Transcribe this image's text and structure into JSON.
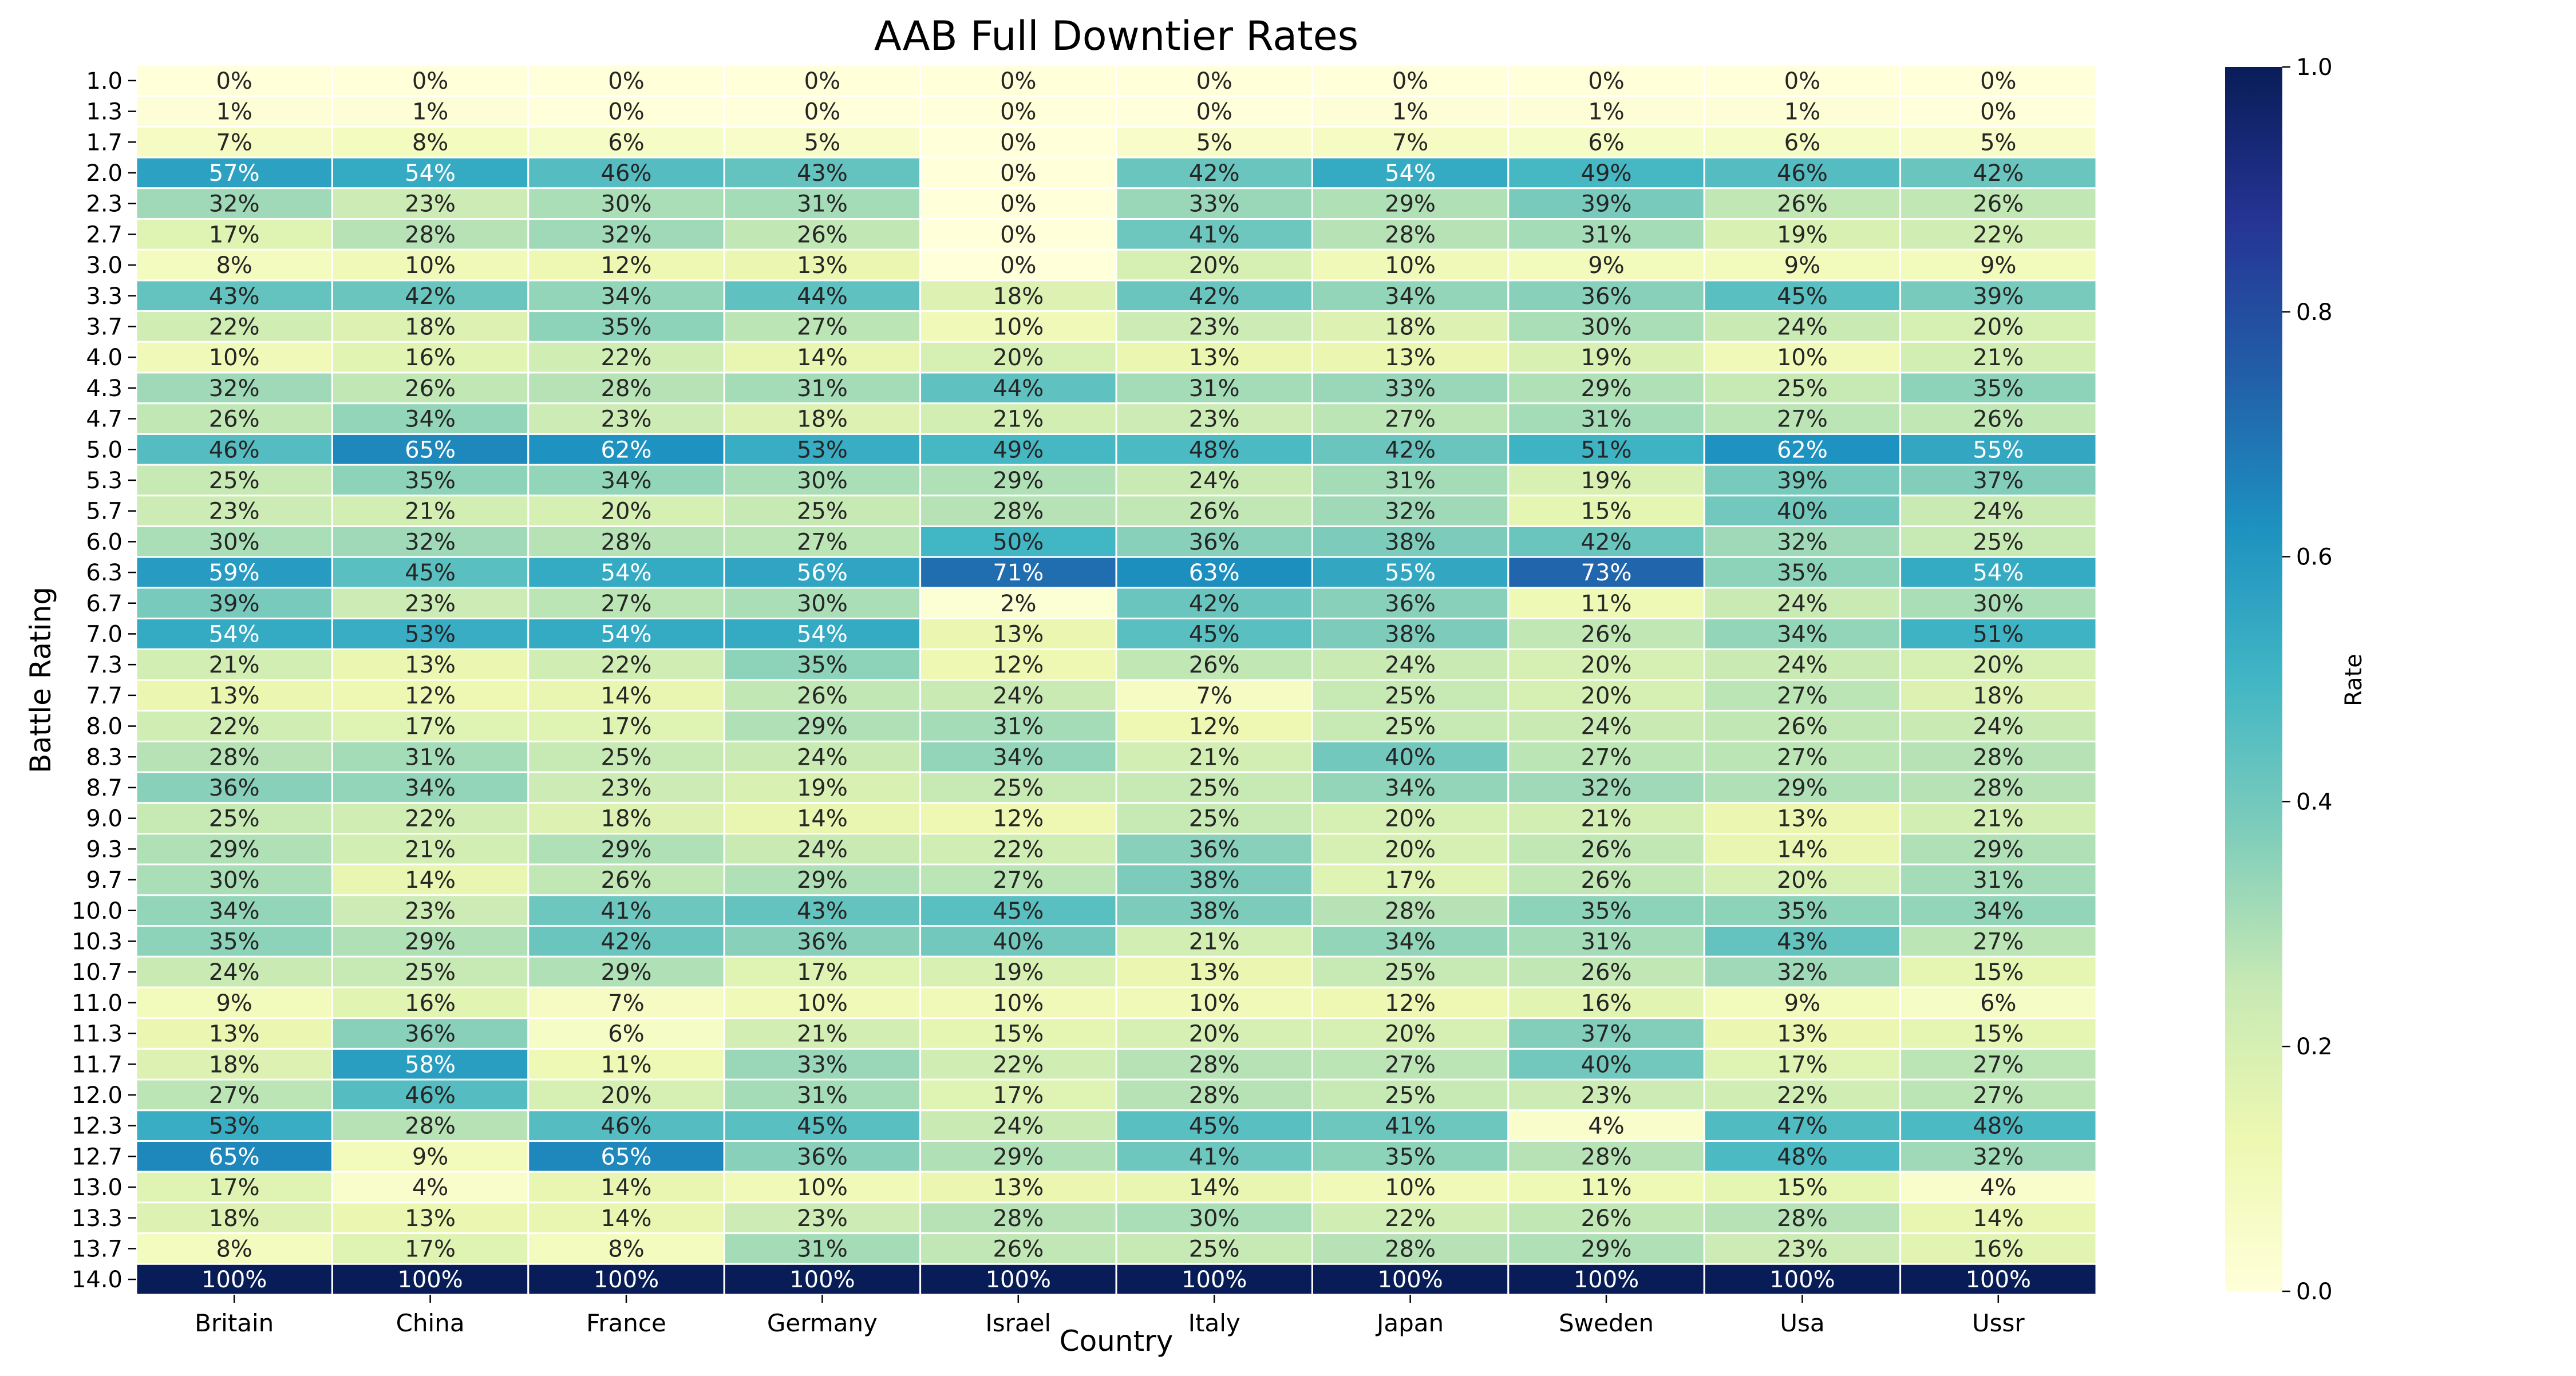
{
  "chart_data": {
    "type": "heatmap",
    "title": "AAB Full Downtier Rates",
    "xlabel": "Country",
    "ylabel": "Battle Rating",
    "x": [
      "Britain",
      "China",
      "France",
      "Germany",
      "Israel",
      "Italy",
      "Japan",
      "Sweden",
      "Usa",
      "Ussr"
    ],
    "y": [
      "1.0",
      "1.3",
      "1.7",
      "2.0",
      "2.3",
      "2.7",
      "3.0",
      "3.3",
      "3.7",
      "4.0",
      "4.3",
      "4.7",
      "5.0",
      "5.3",
      "5.7",
      "6.0",
      "6.3",
      "6.7",
      "7.0",
      "7.3",
      "7.7",
      "8.0",
      "8.3",
      "8.7",
      "9.0",
      "9.3",
      "9.7",
      "10.0",
      "10.3",
      "10.7",
      "11.0",
      "11.3",
      "11.7",
      "12.0",
      "12.3",
      "12.7",
      "13.0",
      "13.3",
      "13.7",
      "14.0"
    ],
    "values": [
      [
        0,
        0,
        0,
        0,
        0,
        0,
        0,
        0,
        0,
        0
      ],
      [
        1,
        1,
        0,
        0,
        0,
        0,
        1,
        1,
        1,
        0
      ],
      [
        7,
        8,
        6,
        5,
        0,
        5,
        7,
        6,
        6,
        5
      ],
      [
        57,
        54,
        46,
        43,
        0,
        42,
        54,
        49,
        46,
        42
      ],
      [
        32,
        23,
        30,
        31,
        0,
        33,
        29,
        39,
        26,
        26
      ],
      [
        17,
        28,
        32,
        26,
        0,
        41,
        28,
        31,
        19,
        22
      ],
      [
        8,
        10,
        12,
        13,
        0,
        20,
        10,
        9,
        9,
        9
      ],
      [
        43,
        42,
        34,
        44,
        18,
        42,
        34,
        36,
        45,
        39
      ],
      [
        22,
        18,
        35,
        27,
        10,
        23,
        18,
        30,
        24,
        20
      ],
      [
        10,
        16,
        22,
        14,
        20,
        13,
        13,
        19,
        10,
        21
      ],
      [
        32,
        26,
        28,
        31,
        44,
        31,
        33,
        29,
        25,
        35
      ],
      [
        26,
        34,
        23,
        18,
        21,
        23,
        27,
        31,
        27,
        26
      ],
      [
        46,
        65,
        62,
        53,
        49,
        48,
        42,
        51,
        62,
        55
      ],
      [
        25,
        35,
        34,
        30,
        29,
        24,
        31,
        19,
        39,
        37
      ],
      [
        23,
        21,
        20,
        25,
        28,
        26,
        32,
        15,
        40,
        24
      ],
      [
        30,
        32,
        28,
        27,
        50,
        36,
        38,
        42,
        32,
        25
      ],
      [
        59,
        45,
        54,
        56,
        71,
        63,
        55,
        73,
        35,
        54
      ],
      [
        39,
        23,
        27,
        30,
        2,
        42,
        36,
        11,
        24,
        30
      ],
      [
        54,
        53,
        54,
        54,
        13,
        45,
        38,
        26,
        34,
        51
      ],
      [
        21,
        13,
        22,
        35,
        12,
        26,
        24,
        20,
        24,
        20
      ],
      [
        13,
        12,
        14,
        26,
        24,
        7,
        25,
        20,
        27,
        18
      ],
      [
        22,
        17,
        17,
        29,
        31,
        12,
        25,
        24,
        26,
        24
      ],
      [
        28,
        31,
        25,
        24,
        34,
        21,
        40,
        27,
        27,
        28
      ],
      [
        36,
        34,
        23,
        19,
        25,
        25,
        34,
        32,
        29,
        28
      ],
      [
        25,
        22,
        18,
        14,
        12,
        25,
        20,
        21,
        13,
        21
      ],
      [
        29,
        21,
        29,
        24,
        22,
        36,
        20,
        26,
        14,
        29
      ],
      [
        30,
        14,
        26,
        29,
        27,
        38,
        17,
        26,
        20,
        31
      ],
      [
        34,
        23,
        41,
        43,
        45,
        38,
        28,
        35,
        35,
        34
      ],
      [
        35,
        29,
        42,
        36,
        40,
        21,
        34,
        31,
        43,
        27
      ],
      [
        24,
        25,
        29,
        17,
        19,
        13,
        25,
        26,
        32,
        15
      ],
      [
        9,
        16,
        7,
        10,
        10,
        10,
        12,
        16,
        9,
        6
      ],
      [
        13,
        36,
        6,
        21,
        15,
        20,
        20,
        37,
        13,
        15
      ],
      [
        18,
        58,
        11,
        33,
        22,
        28,
        27,
        40,
        17,
        27
      ],
      [
        27,
        46,
        20,
        31,
        17,
        28,
        25,
        23,
        22,
        27
      ],
      [
        53,
        28,
        46,
        45,
        24,
        45,
        41,
        4,
        47,
        48
      ],
      [
        65,
        9,
        65,
        36,
        29,
        41,
        35,
        28,
        48,
        32
      ],
      [
        17,
        4,
        14,
        10,
        13,
        14,
        10,
        11,
        15,
        4
      ],
      [
        18,
        13,
        14,
        23,
        28,
        30,
        22,
        26,
        28,
        14
      ],
      [
        8,
        17,
        8,
        31,
        26,
        25,
        28,
        29,
        23,
        16
      ],
      [
        100,
        100,
        100,
        100,
        100,
        100,
        100,
        100,
        100,
        100
      ]
    ],
    "value_unit": "%",
    "colorbar": {
      "label": "Rate",
      "range": [
        0.0,
        1.0
      ],
      "ticks": [
        "0.0",
        "0.2",
        "0.4",
        "0.6",
        "0.8",
        "1.0"
      ],
      "colormap": "YlGnBu",
      "colormap_stops": [
        "#ffffd9",
        "#edf8b1",
        "#c7e9b4",
        "#7fcdbb",
        "#41b6c4",
        "#1d91c0",
        "#225ea8",
        "#253494",
        "#081d58"
      ]
    },
    "grid": false,
    "cell_border_color": "#ffffff"
  }
}
